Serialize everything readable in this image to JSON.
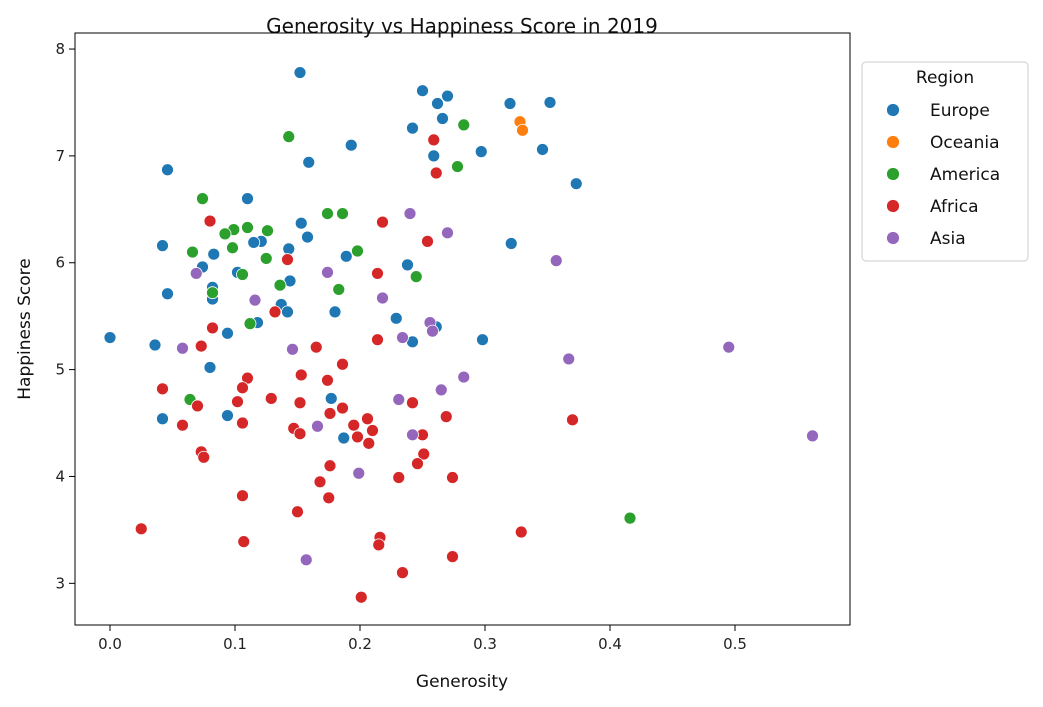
{
  "chart_data": {
    "type": "scatter",
    "title": "Generosity vs Happiness Score in 2019",
    "xlabel": "Generosity",
    "ylabel": "Happiness Score",
    "xlim": [
      -0.028,
      0.592
    ],
    "ylim": [
      2.61,
      8.15
    ],
    "xticks": [
      "0.0",
      "0.1",
      "0.2",
      "0.3",
      "0.4",
      "0.5"
    ],
    "yticks": [
      "3",
      "4",
      "5",
      "6",
      "7",
      "8"
    ],
    "grid": false,
    "legend": {
      "title": "Region",
      "placement": "outside-top-right"
    },
    "series": [
      {
        "name": "Europe",
        "color": "#1f77b4",
        "points": [
          [
            0.152,
            7.78
          ],
          [
            0.25,
            7.61
          ],
          [
            0.262,
            7.49
          ],
          [
            0.27,
            7.56
          ],
          [
            0.32,
            7.49
          ],
          [
            0.352,
            7.5
          ],
          [
            0.266,
            7.35
          ],
          [
            0.242,
            7.26
          ],
          [
            0.193,
            7.1
          ],
          [
            0.346,
            7.06
          ],
          [
            0.259,
            7.0
          ],
          [
            0.297,
            7.04
          ],
          [
            0.159,
            6.94
          ],
          [
            0.373,
            6.74
          ],
          [
            0.046,
            6.87
          ],
          [
            0.11,
            6.6
          ],
          [
            0.042,
            6.16
          ],
          [
            0.121,
            6.2
          ],
          [
            0.153,
            6.37
          ],
          [
            0.083,
            6.08
          ],
          [
            0.158,
            6.24
          ],
          [
            0.143,
            6.13
          ],
          [
            0.115,
            6.19
          ],
          [
            0.102,
            5.91
          ],
          [
            0.189,
            6.06
          ],
          [
            0.074,
            5.96
          ],
          [
            0.144,
            5.83
          ],
          [
            0.046,
            5.71
          ],
          [
            0.082,
            5.77
          ],
          [
            0.082,
            5.66
          ],
          [
            0.321,
            6.18
          ],
          [
            0.238,
            5.98
          ],
          [
            0.0,
            5.3
          ],
          [
            0.036,
            5.23
          ],
          [
            0.094,
            5.34
          ],
          [
            0.137,
            5.61
          ],
          [
            0.142,
            5.54
          ],
          [
            0.118,
            5.44
          ],
          [
            0.18,
            5.54
          ],
          [
            0.229,
            5.48
          ],
          [
            0.261,
            5.4
          ],
          [
            0.242,
            5.26
          ],
          [
            0.298,
            5.28
          ],
          [
            0.08,
            5.02
          ],
          [
            0.042,
            4.54
          ],
          [
            0.094,
            4.57
          ],
          [
            0.177,
            4.73
          ],
          [
            0.187,
            4.36
          ]
        ]
      },
      {
        "name": "Oceania",
        "color": "#ff7f0e",
        "points": [
          [
            0.328,
            7.32
          ],
          [
            0.33,
            7.24
          ]
        ]
      },
      {
        "name": "America",
        "color": "#2ca02c",
        "points": [
          [
            0.143,
            7.18
          ],
          [
            0.283,
            7.29
          ],
          [
            0.278,
            6.9
          ],
          [
            0.074,
            6.6
          ],
          [
            0.11,
            6.33
          ],
          [
            0.099,
            6.31
          ],
          [
            0.126,
            6.3
          ],
          [
            0.092,
            6.27
          ],
          [
            0.098,
            6.14
          ],
          [
            0.066,
            6.1
          ],
          [
            0.174,
            6.46
          ],
          [
            0.186,
            6.46
          ],
          [
            0.198,
            6.11
          ],
          [
            0.125,
            6.04
          ],
          [
            0.106,
            5.89
          ],
          [
            0.082,
            5.72
          ],
          [
            0.136,
            5.79
          ],
          [
            0.183,
            5.75
          ],
          [
            0.245,
            5.87
          ],
          [
            0.112,
            5.43
          ],
          [
            0.064,
            4.72
          ],
          [
            0.416,
            3.61
          ]
        ]
      },
      {
        "name": "Africa",
        "color": "#d62728",
        "points": [
          [
            0.259,
            7.15
          ],
          [
            0.261,
            6.84
          ],
          [
            0.08,
            6.39
          ],
          [
            0.218,
            6.38
          ],
          [
            0.254,
            6.2
          ],
          [
            0.142,
            6.03
          ],
          [
            0.214,
            5.9
          ],
          [
            0.082,
            5.39
          ],
          [
            0.132,
            5.54
          ],
          [
            0.214,
            5.28
          ],
          [
            0.073,
            5.22
          ],
          [
            0.165,
            5.21
          ],
          [
            0.186,
            5.05
          ],
          [
            0.153,
            4.95
          ],
          [
            0.11,
            4.92
          ],
          [
            0.174,
            4.9
          ],
          [
            0.106,
            4.83
          ],
          [
            0.042,
            4.82
          ],
          [
            0.102,
            4.7
          ],
          [
            0.152,
            4.69
          ],
          [
            0.242,
            4.69
          ],
          [
            0.07,
            4.66
          ],
          [
            0.129,
            4.73
          ],
          [
            0.186,
            4.64
          ],
          [
            0.176,
            4.59
          ],
          [
            0.058,
            4.48
          ],
          [
            0.106,
            4.5
          ],
          [
            0.147,
            4.45
          ],
          [
            0.152,
            4.4
          ],
          [
            0.195,
            4.48
          ],
          [
            0.206,
            4.54
          ],
          [
            0.21,
            4.43
          ],
          [
            0.269,
            4.56
          ],
          [
            0.37,
            4.53
          ],
          [
            0.198,
            4.37
          ],
          [
            0.207,
            4.31
          ],
          [
            0.25,
            4.39
          ],
          [
            0.073,
            4.23
          ],
          [
            0.075,
            4.18
          ],
          [
            0.251,
            4.21
          ],
          [
            0.246,
            4.12
          ],
          [
            0.176,
            4.1
          ],
          [
            0.168,
            3.95
          ],
          [
            0.231,
            3.99
          ],
          [
            0.274,
            3.99
          ],
          [
            0.106,
            3.82
          ],
          [
            0.175,
            3.8
          ],
          [
            0.15,
            3.67
          ],
          [
            0.025,
            3.51
          ],
          [
            0.216,
            3.43
          ],
          [
            0.215,
            3.36
          ],
          [
            0.107,
            3.39
          ],
          [
            0.329,
            3.48
          ],
          [
            0.274,
            3.25
          ],
          [
            0.234,
            3.1
          ],
          [
            0.201,
            2.87
          ]
        ]
      },
      {
        "name": "Asia",
        "color": "#9467bd",
        "points": [
          [
            0.24,
            6.46
          ],
          [
            0.27,
            6.28
          ],
          [
            0.357,
            6.02
          ],
          [
            0.069,
            5.9
          ],
          [
            0.174,
            5.91
          ],
          [
            0.218,
            5.67
          ],
          [
            0.116,
            5.65
          ],
          [
            0.256,
            5.44
          ],
          [
            0.258,
            5.36
          ],
          [
            0.234,
            5.3
          ],
          [
            0.058,
            5.2
          ],
          [
            0.146,
            5.19
          ],
          [
            0.495,
            5.21
          ],
          [
            0.367,
            5.1
          ],
          [
            0.265,
            4.81
          ],
          [
            0.283,
            4.93
          ],
          [
            0.231,
            4.72
          ],
          [
            0.166,
            4.47
          ],
          [
            0.242,
            4.39
          ],
          [
            0.562,
            4.38
          ],
          [
            0.199,
            4.03
          ],
          [
            0.157,
            3.22
          ]
        ]
      }
    ]
  }
}
